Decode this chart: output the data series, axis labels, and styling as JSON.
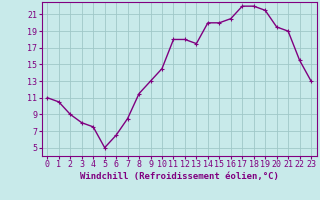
{
  "x": [
    0,
    1,
    2,
    3,
    4,
    5,
    6,
    7,
    8,
    9,
    10,
    11,
    12,
    13,
    14,
    15,
    16,
    17,
    18,
    19,
    20,
    21,
    22,
    23
  ],
  "y": [
    11,
    10.5,
    9,
    8,
    7.5,
    5,
    6.5,
    8.5,
    11.5,
    13,
    14.5,
    18,
    18,
    17.5,
    20,
    20,
    20.5,
    22,
    22,
    21.5,
    19.5,
    19,
    15.5,
    13
  ],
  "line_color": "#800080",
  "marker": "+",
  "marker_size": 3,
  "background_color": "#c8eaea",
  "grid_color": "#a0c8c8",
  "xlabel": "Windchill (Refroidissement éolien,°C)",
  "xlabel_fontsize": 6.5,
  "xlim": [
    -0.5,
    23.5
  ],
  "ylim": [
    4,
    22.5
  ],
  "yticks": [
    5,
    7,
    9,
    11,
    13,
    15,
    17,
    19,
    21
  ],
  "xticks": [
    0,
    1,
    2,
    3,
    4,
    5,
    6,
    7,
    8,
    9,
    10,
    11,
    12,
    13,
    14,
    15,
    16,
    17,
    18,
    19,
    20,
    21,
    22,
    23
  ],
  "tick_fontsize": 6,
  "linewidth": 1.0
}
